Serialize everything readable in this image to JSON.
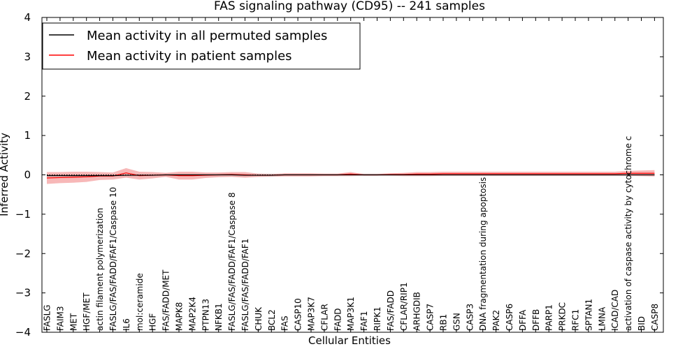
{
  "chart_data": {
    "type": "line",
    "title": "FAS signaling pathway (CD95) -- 241 samples",
    "xlabel": "Cellular Entities",
    "ylabel": "Inferred Activity",
    "ylim": [
      -4,
      4
    ],
    "yticks": [
      "−4",
      "−3",
      "−2",
      "−1",
      "0",
      "1",
      "2",
      "3",
      "4"
    ],
    "legend_position": "top-left",
    "categories": [
      "FASLG",
      "FAIM3",
      "MET",
      "HGF/MET",
      "actin filament polymerization",
      "FASLG/FAS/FADD/FAF1/Caspase 10",
      "IL6",
      "mol:ceramide",
      "HGF",
      "FAS/FADD/MET",
      "MAPK8",
      "MAP2K4",
      "PTPN13",
      "NFKB1",
      "FASLG/FAS/FADD/FAF1/Caspase 8",
      "FASLG/FAS/FADD/FAF1",
      "CHUK",
      "BCL2",
      "FAS",
      "CASP10",
      "MAP3K7",
      "CFLAR",
      "FADD",
      "MAP3K1",
      "FAF1",
      "RIPK1",
      "FAS/FADD",
      "CFLAR/RIP1",
      "ARHGDIB",
      "CASP7",
      "RB1",
      "GSN",
      "CASP3",
      "DNA fragmentation during apoptosis",
      "PAK2",
      "CASP6",
      "DFFA",
      "DFFB",
      "PARP1",
      "PRKDC",
      "RFC1",
      "SPTAN1",
      "LMNA",
      "ICAD/CAD",
      "activation of caspase activity by cytochrome c",
      "BID",
      "CASP8"
    ],
    "series": [
      {
        "name": "Mean activity in all permuted samples",
        "color": "#000000",
        "values": [
          -0.02,
          -0.02,
          -0.02,
          -0.02,
          -0.02,
          -0.02,
          -0.01,
          -0.01,
          -0.01,
          0.0,
          0.0,
          0.0,
          0.0,
          0.0,
          0.0,
          -0.01,
          -0.01,
          -0.01,
          0.0,
          0.0,
          0.0,
          0.0,
          0.0,
          0.0,
          0.0,
          0.0,
          0.0,
          0.0,
          0.0,
          0.0,
          0.0,
          0.0,
          0.0,
          0.0,
          0.0,
          0.0,
          0.0,
          0.0,
          0.0,
          0.0,
          0.0,
          0.0,
          0.0,
          0.0,
          0.0,
          0.0,
          0.0
        ],
        "band": [
          0.04,
          0.04,
          0.04,
          0.04,
          0.04,
          0.04,
          0.04,
          0.04,
          0.04,
          0.04,
          0.04,
          0.04,
          0.04,
          0.04,
          0.04,
          0.04,
          0.04,
          0.04,
          0.03,
          0.03,
          0.03,
          0.03,
          0.03,
          0.03,
          0.03,
          0.03,
          0.03,
          0.03,
          0.03,
          0.03,
          0.03,
          0.03,
          0.03,
          0.03,
          0.03,
          0.03,
          0.03,
          0.03,
          0.03,
          0.03,
          0.03,
          0.03,
          0.03,
          0.03,
          0.03,
          0.03,
          0.03
        ],
        "band_color": "#c8c8c8"
      },
      {
        "name": "Mean activity in patient samples",
        "color": "#ff0000",
        "values": [
          -0.08,
          -0.07,
          -0.06,
          -0.05,
          -0.03,
          -0.03,
          0.05,
          -0.02,
          -0.01,
          0.0,
          -0.02,
          -0.02,
          -0.01,
          0.0,
          0.01,
          0.0,
          -0.01,
          -0.01,
          0.0,
          0.0,
          0.0,
          0.0,
          0.0,
          0.02,
          0.0,
          0.0,
          0.01,
          0.01,
          0.02,
          0.02,
          0.03,
          0.03,
          0.03,
          0.03,
          0.03,
          0.03,
          0.03,
          0.03,
          0.03,
          0.03,
          0.03,
          0.03,
          0.03,
          0.03,
          0.04,
          0.04,
          0.04
        ],
        "band": [
          0.15,
          0.14,
          0.14,
          0.13,
          0.1,
          0.09,
          0.12,
          0.1,
          0.08,
          0.05,
          0.1,
          0.1,
          0.07,
          0.06,
          0.06,
          0.07,
          0.04,
          0.03,
          0.04,
          0.04,
          0.04,
          0.03,
          0.03,
          0.05,
          0.02,
          0.02,
          0.03,
          0.04,
          0.05,
          0.05,
          0.05,
          0.05,
          0.05,
          0.05,
          0.05,
          0.05,
          0.05,
          0.05,
          0.05,
          0.05,
          0.05,
          0.05,
          0.05,
          0.05,
          0.06,
          0.07,
          0.08
        ],
        "band_color": "#f4a0a0"
      }
    ]
  }
}
